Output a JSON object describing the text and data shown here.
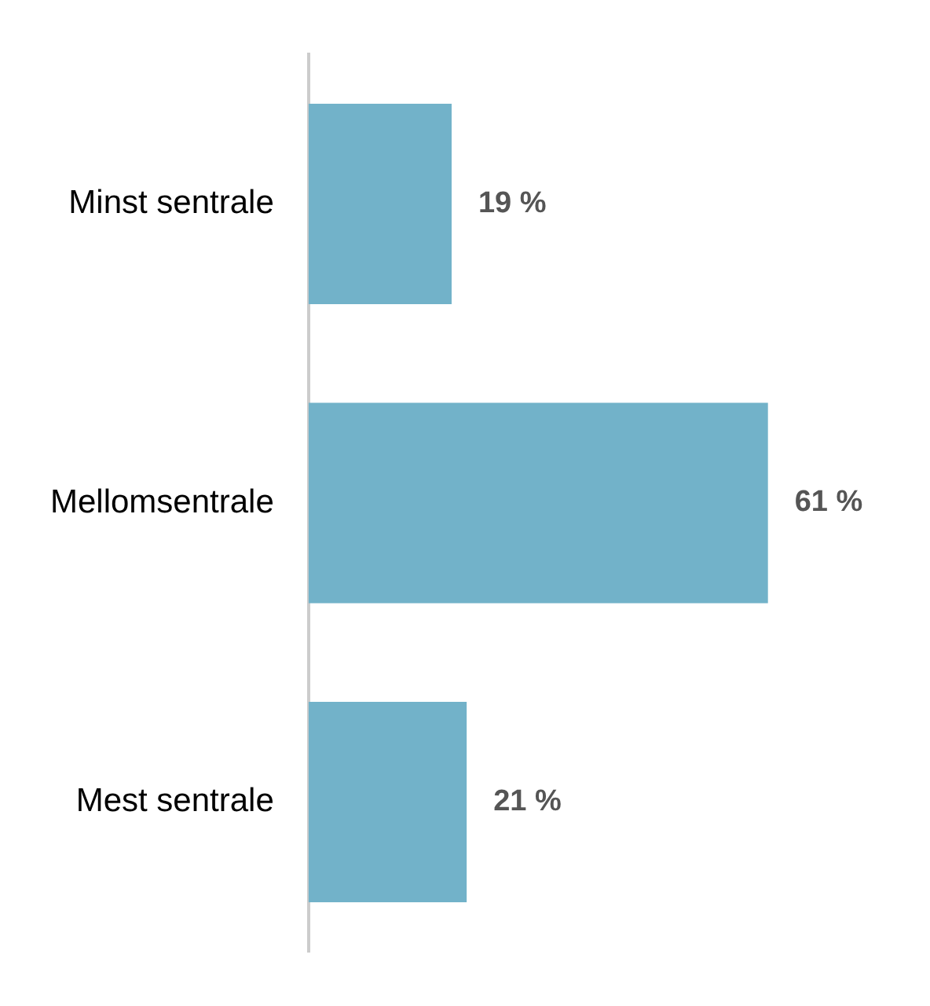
{
  "chart_data": {
    "type": "bar",
    "orientation": "horizontal",
    "categories": [
      "Minst sentrale",
      "Mellomsentrale",
      "Mest sentrale"
    ],
    "values": [
      19,
      61,
      21
    ],
    "value_labels": [
      "19 %",
      "61 %",
      "21 %"
    ],
    "color": "#72b2c9",
    "tick_labels": "y"
  }
}
